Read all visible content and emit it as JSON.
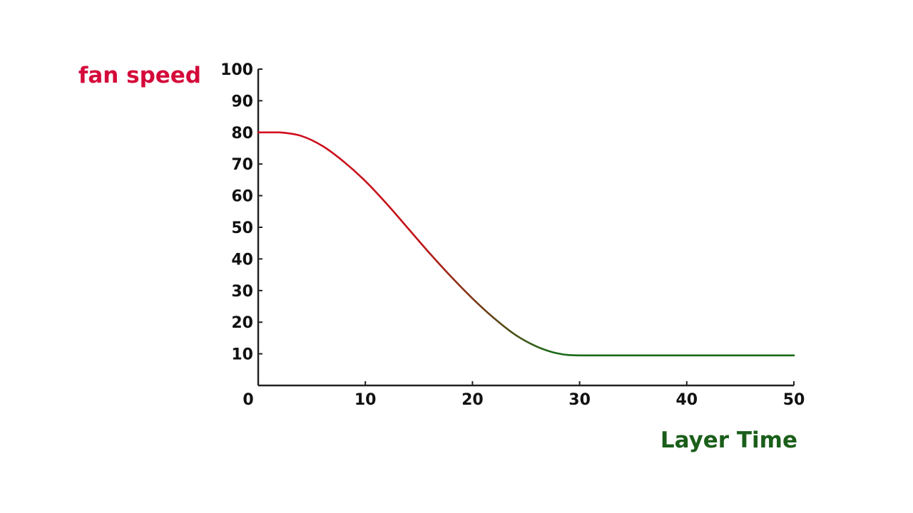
{
  "chart_data": {
    "type": "line",
    "title": "",
    "xlabel": "Layer Time",
    "ylabel": "fan speed",
    "xlim": [
      0,
      50
    ],
    "ylim": [
      0,
      100
    ],
    "xticks": [
      "0",
      "10",
      "20",
      "30",
      "40",
      "50"
    ],
    "yticks": [
      "10",
      "20",
      "30",
      "40",
      "50",
      "60",
      "70",
      "80",
      "90",
      "100"
    ],
    "grid": false,
    "legend": "none",
    "series": [
      {
        "x": [
          0,
          2,
          4,
          6,
          8,
          10,
          12,
          14,
          16,
          18,
          20,
          22,
          24,
          26,
          28,
          30,
          35,
          40,
          45,
          50
        ],
        "y": [
          80,
          80,
          78.9,
          75.7,
          70.7,
          64.6,
          57.4,
          49.6,
          41.8,
          34.4,
          27.5,
          21.3,
          16.0,
          12.3,
          10.1,
          9.5,
          9.5,
          9.5,
          9.5,
          9.5
        ]
      }
    ],
    "colors": {
      "line_start": "#d40a1e",
      "line_end": "#1a6a18",
      "ylabel": "#d40a3a",
      "xlabel": "#1a5e1a",
      "axis": "#222222"
    }
  }
}
